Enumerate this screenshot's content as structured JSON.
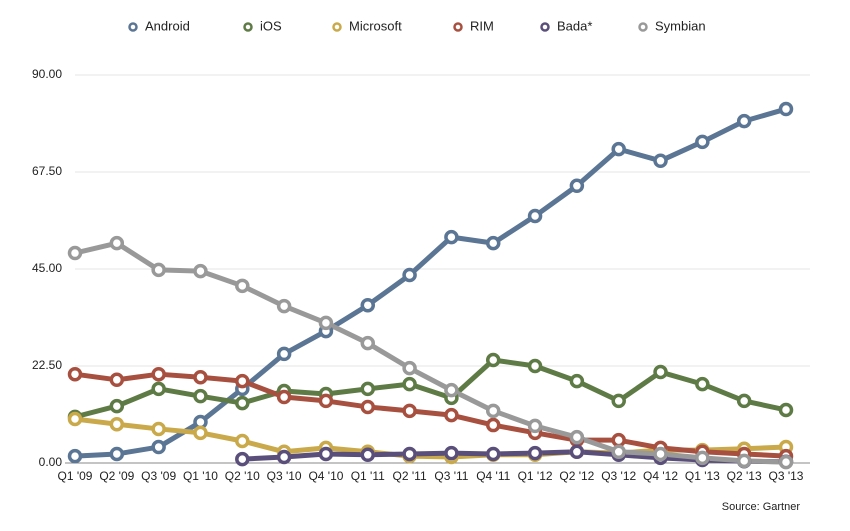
{
  "chart_data": {
    "type": "line",
    "categories": [
      "Q1 '09",
      "Q2 '09",
      "Q3 '09",
      "Q1 '10",
      "Q2 '10",
      "Q3 '10",
      "Q4 '10",
      "Q1 '11",
      "Q2 '11",
      "Q3 '11",
      "Q4 '11",
      "Q1 '12",
      "Q2 '12",
      "Q3 '12",
      "Q4 '12",
      "Q1 '13",
      "Q2 '13",
      "Q3 '13"
    ],
    "series": [
      {
        "name": "Android",
        "color": "#5b7594",
        "values": [
          1.6,
          2.1,
          3.7,
          9.5,
          17.2,
          25.3,
          30.6,
          36.6,
          43.6,
          52.4,
          51.0,
          57.3,
          64.3,
          72.8,
          70.1,
          74.5,
          79.3,
          82.1
        ]
      },
      {
        "name": "iOS",
        "color": "#5e7a45",
        "values": [
          10.7,
          13.2,
          17.2,
          15.5,
          13.9,
          16.7,
          16.0,
          17.2,
          18.3,
          15.1,
          23.9,
          22.5,
          19.0,
          14.4,
          21.1,
          18.3,
          14.4,
          12.3
        ]
      },
      {
        "name": "Microsoft",
        "color": "#c9a94a",
        "values": [
          10.2,
          9.0,
          7.9,
          7.0,
          5.1,
          2.6,
          3.5,
          2.6,
          1.6,
          1.4,
          1.9,
          1.9,
          2.6,
          2.3,
          3.0,
          3.0,
          3.3,
          3.7
        ]
      },
      {
        "name": "RIM",
        "color": "#a8503f",
        "values": [
          20.6,
          19.3,
          20.6,
          19.9,
          19.0,
          15.3,
          14.4,
          13.0,
          12.1,
          11.1,
          8.8,
          7.0,
          5.3,
          5.3,
          3.5,
          2.6,
          2.1,
          1.6
        ]
      },
      {
        "name": "Bada*",
        "color": "#5a4f7a",
        "values": [
          null,
          null,
          null,
          null,
          0.9,
          1.4,
          2.1,
          1.9,
          2.1,
          2.3,
          2.1,
          2.3,
          2.6,
          1.9,
          1.2,
          0.7,
          0.4,
          0.3
        ]
      },
      {
        "name": "Symbian",
        "color": "#999999",
        "values": [
          48.7,
          51.0,
          44.8,
          44.5,
          41.1,
          36.4,
          32.5,
          27.8,
          22.0,
          16.9,
          12.1,
          8.6,
          6.0,
          2.6,
          2.1,
          1.2,
          0.5,
          0.2
        ]
      }
    ],
    "ylim": [
      0,
      90
    ],
    "yticks": [
      {
        "value": 0,
        "label": "0.00"
      },
      {
        "value": 22.5,
        "label": "22.50"
      },
      {
        "value": 45,
        "label": "45.00"
      },
      {
        "value": 67.5,
        "label": "67.50"
      },
      {
        "value": 90,
        "label": "90.00"
      }
    ],
    "grid": true,
    "legend": "top",
    "source": "Source: Gartner"
  }
}
